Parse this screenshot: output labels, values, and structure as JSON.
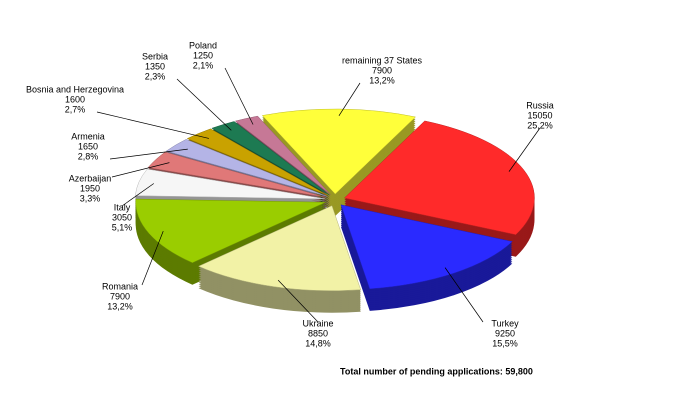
{
  "chart_data": {
    "type": "pie3d",
    "categories": [
      "Russia",
      "Turkey",
      "Ukraine",
      "Romania",
      "Italy",
      "Azerbaijan",
      "Armenia",
      "Bosnia and Herzegovina",
      "Serbia",
      "Poland",
      "remaining 37 States"
    ],
    "values": [
      15050,
      9250,
      8850,
      7900,
      3050,
      1950,
      1650,
      1600,
      1350,
      1250,
      7900
    ],
    "share_labels": [
      "25,2%",
      "15,5%",
      "14,8%",
      "13,2%",
      "5,1%",
      "3,3%",
      "2,8%",
      "2,7%",
      "2,3%",
      "2,1%",
      "13,2%"
    ],
    "colors": [
      "#ff2a2a",
      "#2a2aff",
      "#f2f2a6",
      "#9acd00",
      "#f6f6f6",
      "#e07878",
      "#b4b4e6",
      "#c9a200",
      "#1d7a52",
      "#c67896",
      "#ffff3a"
    ],
    "note": "Total number of pending applications: 59,800"
  }
}
